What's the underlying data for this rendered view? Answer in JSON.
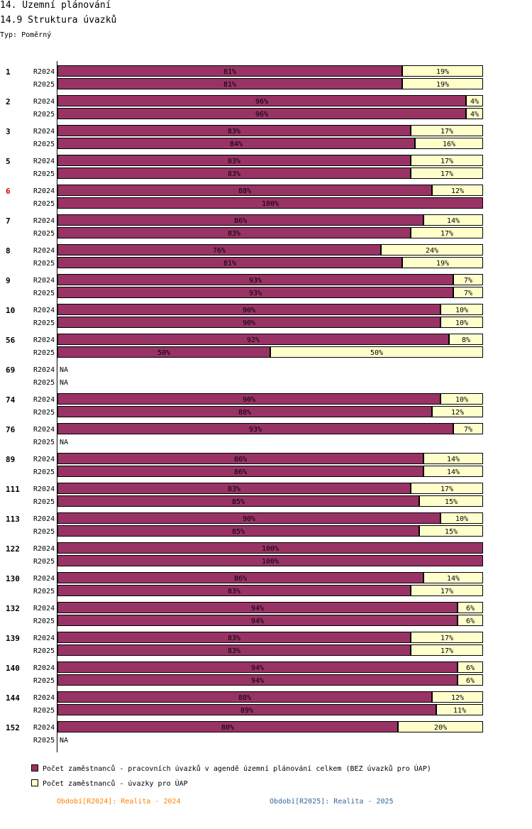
{
  "header": {
    "title": "14. Územní plánování",
    "subtitle": "14.9 Struktura úvazků",
    "type_label": "Typ: Poměrný"
  },
  "colors": {
    "series1": "#993366",
    "series2": "#ffffcc",
    "highlight_label": "#cc0000",
    "period1": "#ff8000",
    "period2": "#336699"
  },
  "chart_data": {
    "type": "bar",
    "orientation": "horizontal",
    "stacked": "percent",
    "title": "14.9 Struktura úvazků",
    "xlim": [
      0,
      100
    ],
    "na_label": "NA",
    "series": [
      {
        "name": "Počet zaměstnanců - pracovních úvazků v agendě územní plánování celkem (BEZ úvazků pro ÚAP)"
      },
      {
        "name": "Počet zaměstnanců - úvazky pro ÚAP"
      }
    ],
    "groups": [
      {
        "id": "1",
        "highlight": false,
        "rows": [
          {
            "period": "R2024",
            "values": [
              81,
              19
            ]
          },
          {
            "period": "R2025",
            "values": [
              81,
              19
            ]
          }
        ]
      },
      {
        "id": "2",
        "highlight": false,
        "rows": [
          {
            "period": "R2024",
            "values": [
              96,
              4
            ]
          },
          {
            "period": "R2025",
            "values": [
              96,
              4
            ]
          }
        ]
      },
      {
        "id": "3",
        "highlight": false,
        "rows": [
          {
            "period": "R2024",
            "values": [
              83,
              17
            ]
          },
          {
            "period": "R2025",
            "values": [
              84,
              16
            ]
          }
        ]
      },
      {
        "id": "5",
        "highlight": false,
        "rows": [
          {
            "period": "R2024",
            "values": [
              83,
              17
            ]
          },
          {
            "period": "R2025",
            "values": [
              83,
              17
            ]
          }
        ]
      },
      {
        "id": "6",
        "highlight": true,
        "rows": [
          {
            "period": "R2024",
            "values": [
              88,
              12
            ]
          },
          {
            "period": "R2025",
            "values": [
              100,
              0
            ]
          }
        ]
      },
      {
        "id": "7",
        "highlight": false,
        "rows": [
          {
            "period": "R2024",
            "values": [
              86,
              14
            ]
          },
          {
            "period": "R2025",
            "values": [
              83,
              17
            ]
          }
        ]
      },
      {
        "id": "8",
        "highlight": false,
        "rows": [
          {
            "period": "R2024",
            "values": [
              76,
              24
            ]
          },
          {
            "period": "R2025",
            "values": [
              81,
              19
            ]
          }
        ]
      },
      {
        "id": "9",
        "highlight": false,
        "rows": [
          {
            "period": "R2024",
            "values": [
              93,
              7
            ]
          },
          {
            "period": "R2025",
            "values": [
              93,
              7
            ]
          }
        ]
      },
      {
        "id": "10",
        "highlight": false,
        "rows": [
          {
            "period": "R2024",
            "values": [
              90,
              10
            ]
          },
          {
            "period": "R2025",
            "values": [
              90,
              10
            ]
          }
        ]
      },
      {
        "id": "56",
        "highlight": false,
        "rows": [
          {
            "period": "R2024",
            "values": [
              92,
              8
            ]
          },
          {
            "period": "R2025",
            "values": [
              50,
              50
            ]
          }
        ]
      },
      {
        "id": "69",
        "highlight": false,
        "rows": [
          {
            "period": "R2024",
            "values": null
          },
          {
            "period": "R2025",
            "values": null
          }
        ]
      },
      {
        "id": "74",
        "highlight": false,
        "rows": [
          {
            "period": "R2024",
            "values": [
              90,
              10
            ]
          },
          {
            "period": "R2025",
            "values": [
              88,
              12
            ]
          }
        ]
      },
      {
        "id": "76",
        "highlight": false,
        "rows": [
          {
            "period": "R2024",
            "values": [
              93,
              7
            ]
          },
          {
            "period": "R2025",
            "values": null
          }
        ]
      },
      {
        "id": "89",
        "highlight": false,
        "rows": [
          {
            "period": "R2024",
            "values": [
              86,
              14
            ]
          },
          {
            "period": "R2025",
            "values": [
              86,
              14
            ]
          }
        ]
      },
      {
        "id": "111",
        "highlight": false,
        "rows": [
          {
            "period": "R2024",
            "values": [
              83,
              17
            ]
          },
          {
            "period": "R2025",
            "values": [
              85,
              15
            ]
          }
        ]
      },
      {
        "id": "113",
        "highlight": false,
        "rows": [
          {
            "period": "R2024",
            "values": [
              90,
              10
            ]
          },
          {
            "period": "R2025",
            "values": [
              85,
              15
            ]
          }
        ]
      },
      {
        "id": "122",
        "highlight": false,
        "rows": [
          {
            "period": "R2024",
            "values": [
              100,
              0
            ]
          },
          {
            "period": "R2025",
            "values": [
              100,
              0
            ]
          }
        ]
      },
      {
        "id": "130",
        "highlight": false,
        "rows": [
          {
            "period": "R2024",
            "values": [
              86,
              14
            ]
          },
          {
            "period": "R2025",
            "values": [
              83,
              17
            ]
          }
        ]
      },
      {
        "id": "132",
        "highlight": false,
        "rows": [
          {
            "period": "R2024",
            "values": [
              94,
              6
            ]
          },
          {
            "period": "R2025",
            "values": [
              94,
              6
            ]
          }
        ]
      },
      {
        "id": "139",
        "highlight": false,
        "rows": [
          {
            "period": "R2024",
            "values": [
              83,
              17
            ]
          },
          {
            "period": "R2025",
            "values": [
              83,
              17
            ]
          }
        ]
      },
      {
        "id": "140",
        "highlight": false,
        "rows": [
          {
            "period": "R2024",
            "values": [
              94,
              6
            ]
          },
          {
            "period": "R2025",
            "values": [
              94,
              6
            ]
          }
        ]
      },
      {
        "id": "144",
        "highlight": false,
        "rows": [
          {
            "period": "R2024",
            "values": [
              88,
              12
            ]
          },
          {
            "period": "R2025",
            "values": [
              89,
              11
            ]
          }
        ]
      },
      {
        "id": "152",
        "highlight": false,
        "rows": [
          {
            "period": "R2024",
            "values": [
              80,
              20
            ]
          },
          {
            "period": "R2025",
            "values": null
          }
        ]
      }
    ]
  },
  "legend": {
    "items": [
      "Počet zaměstnanců - pracovních úvazků v agendě územní plánování celkem (BEZ úvazků pro ÚAP)",
      "Počet zaměstnanců - úvazky pro ÚAP"
    ]
  },
  "periods": {
    "p1": "Období[R2024]: Realita - 2024",
    "p2": "Období[R2025]: Realita - 2025"
  }
}
